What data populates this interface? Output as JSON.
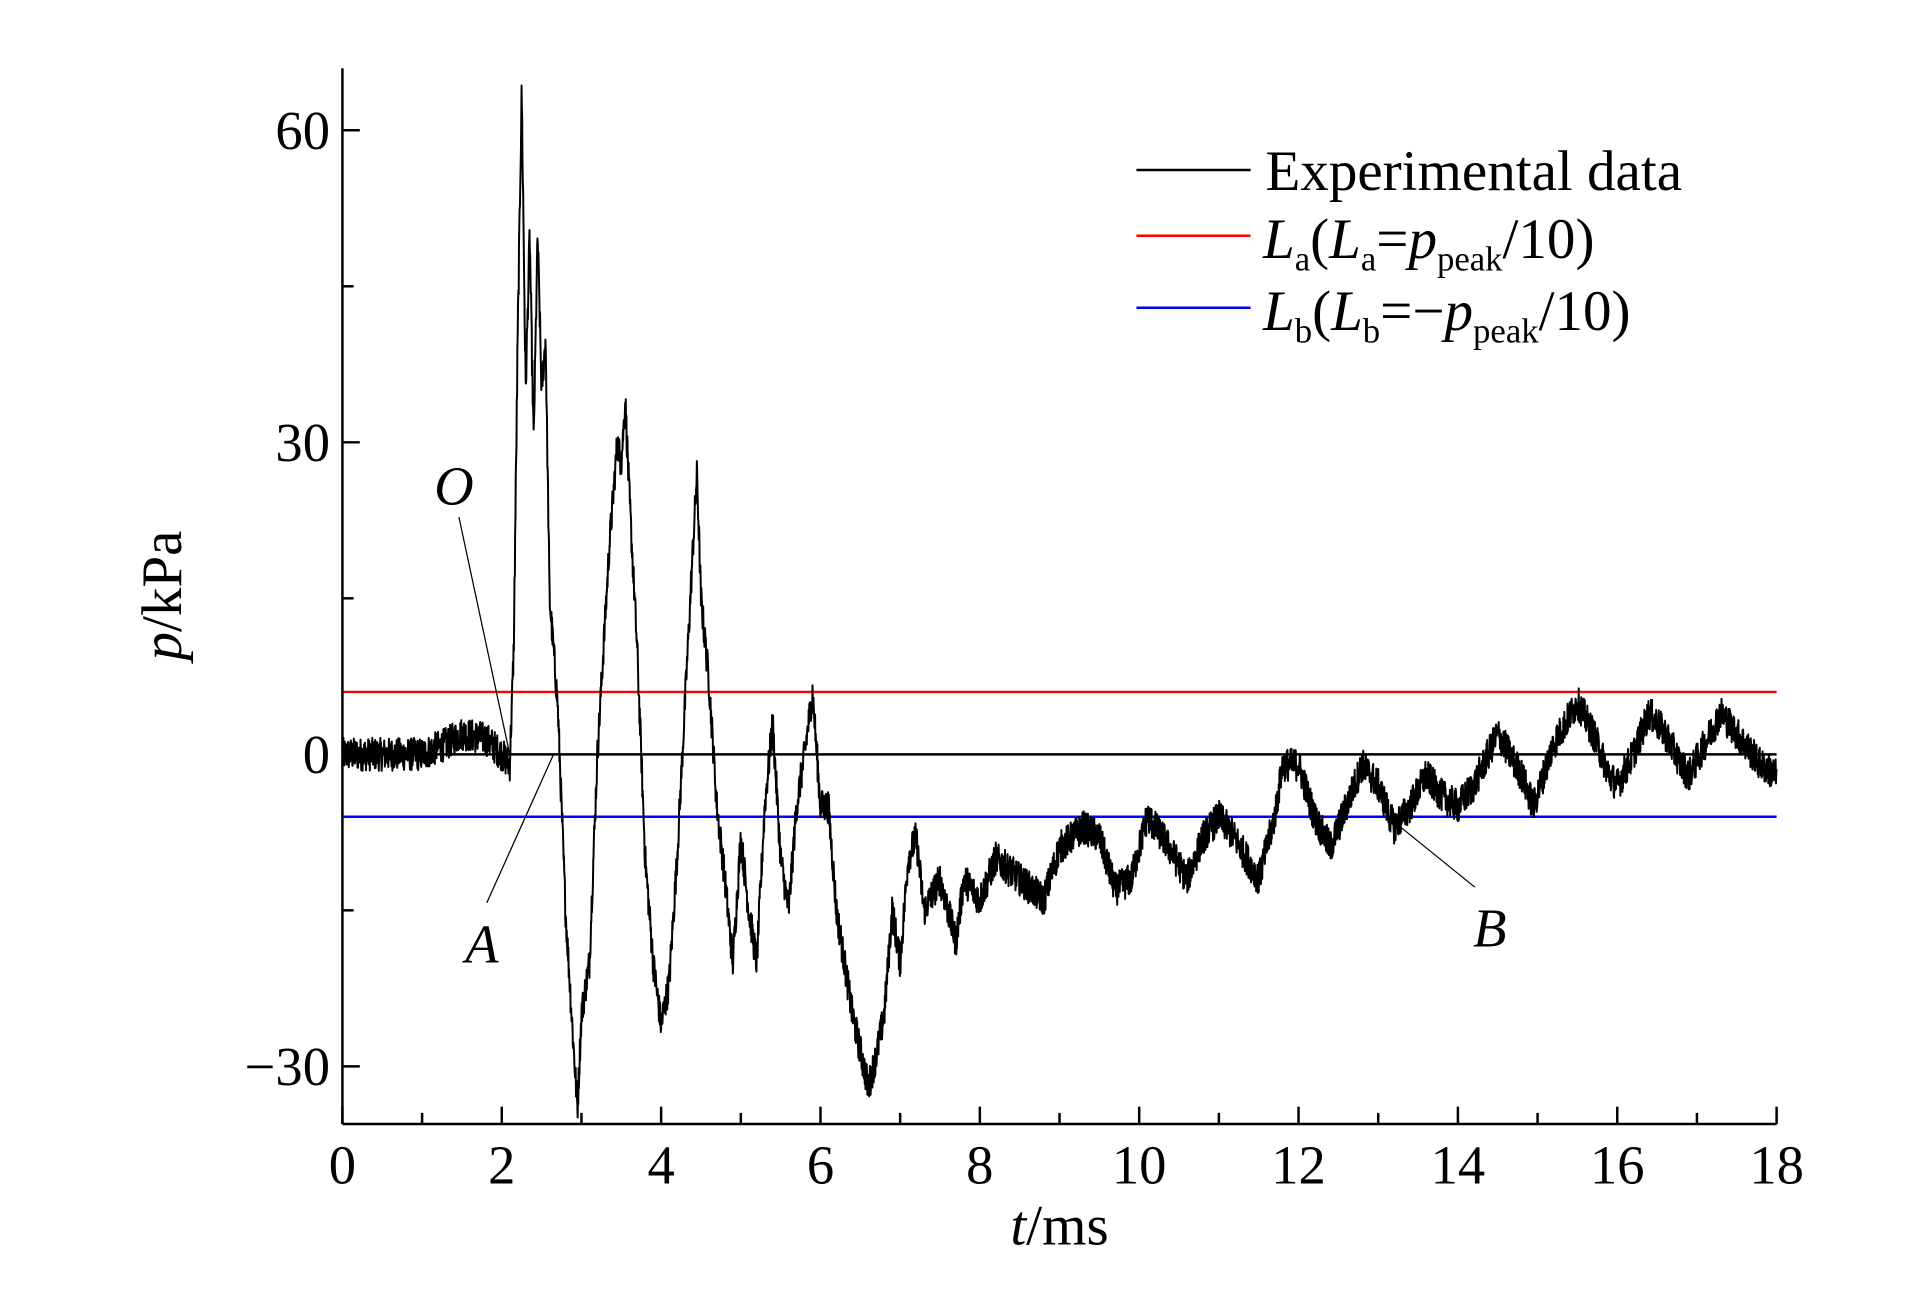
{
  "chart_data": {
    "type": "line",
    "title": "",
    "xlabel_var": "t",
    "xlabel_unit": "/ms",
    "ylabel_var": "p",
    "ylabel_unit": "/kPa",
    "xlim": [
      0,
      18
    ],
    "ylim": [
      -35.5,
      66
    ],
    "x_ticks": [
      0,
      2,
      4,
      6,
      8,
      10,
      12,
      14,
      16,
      18
    ],
    "x_tick_labels": [
      "0",
      "2",
      "4",
      "6",
      "8",
      "10",
      "12",
      "14",
      "16",
      "18"
    ],
    "x_minor_step": 1,
    "y_ticks": [
      -30,
      0,
      30,
      60
    ],
    "y_tick_labels": [
      "−30",
      "0",
      "30",
      "60"
    ],
    "y_minor_step": 15,
    "grid": false,
    "legend_position": "top-right",
    "legend": [
      {
        "label": "Experimental data",
        "color": "#000000"
      },
      {
        "label_main": "L",
        "label_sub": "a",
        "label_rest_open": "(",
        "label_main2": "L",
        "label_sub2": "a",
        "label_eq": "=",
        "label_p": "p",
        "label_psub": "peak",
        "label_tail": "/10)",
        "color": "#ff0000"
      },
      {
        "label_main": "L",
        "label_sub": "b",
        "label_rest_open": "(",
        "label_main2": "L",
        "label_sub2": "b",
        "label_eq": "=−",
        "label_p": "p",
        "label_psub": "peak",
        "label_tail": "/10)",
        "color": "#0000ff"
      }
    ],
    "reference_lines": [
      {
        "name": "zero",
        "y": 0,
        "color": "#000000"
      },
      {
        "name": "La",
        "y": 6.0,
        "color": "#ff0000"
      },
      {
        "name": "Lb",
        "y": -6.0,
        "color": "#0000ff"
      }
    ],
    "annotations": [
      {
        "label": "O",
        "point": [
          2.1,
          0
        ],
        "text_at": [
          1.4,
          24
        ]
      },
      {
        "label": "A",
        "point": [
          2.65,
          0
        ],
        "text_at": [
          1.75,
          -20
        ]
      },
      {
        "label": "B",
        "point": [
          13.2,
          -6.5
        ],
        "text_at": [
          14.4,
          -18.5
        ]
      }
    ],
    "series": [
      {
        "name": "Experimental data",
        "color": "#000000",
        "noise_amplitude_kPa": 1.6,
        "points": [
          [
            0,
            0
          ],
          [
            0.5,
            0
          ],
          [
            1.0,
            0
          ],
          [
            1.3,
            1
          ],
          [
            1.5,
            2
          ],
          [
            1.8,
            1.5
          ],
          [
            2.0,
            0
          ],
          [
            2.1,
            -1
          ],
          [
            2.15,
            10
          ],
          [
            2.2,
            40
          ],
          [
            2.25,
            64
          ],
          [
            2.3,
            35
          ],
          [
            2.35,
            50
          ],
          [
            2.4,
            30
          ],
          [
            2.45,
            50
          ],
          [
            2.5,
            35
          ],
          [
            2.55,
            40
          ],
          [
            2.6,
            15
          ],
          [
            2.7,
            5
          ],
          [
            2.8,
            -15
          ],
          [
            2.9,
            -28
          ],
          [
            2.95,
            -34
          ],
          [
            3.0,
            -25
          ],
          [
            3.1,
            -20
          ],
          [
            3.2,
            0
          ],
          [
            3.35,
            20
          ],
          [
            3.45,
            30
          ],
          [
            3.5,
            28
          ],
          [
            3.55,
            34
          ],
          [
            3.6,
            25
          ],
          [
            3.7,
            10
          ],
          [
            3.8,
            -10
          ],
          [
            3.9,
            -20
          ],
          [
            4.0,
            -26
          ],
          [
            4.1,
            -22
          ],
          [
            4.2,
            -10
          ],
          [
            4.3,
            5
          ],
          [
            4.4,
            20
          ],
          [
            4.45,
            27
          ],
          [
            4.5,
            15
          ],
          [
            4.6,
            7
          ],
          [
            4.7,
            -5
          ],
          [
            4.8,
            -12
          ],
          [
            4.9,
            -20
          ],
          [
            5.0,
            -8
          ],
          [
            5.1,
            -15
          ],
          [
            5.2,
            -20
          ],
          [
            5.3,
            -5
          ],
          [
            5.4,
            3
          ],
          [
            5.5,
            -10
          ],
          [
            5.6,
            -15
          ],
          [
            5.7,
            -5
          ],
          [
            5.8,
            0
          ],
          [
            5.9,
            6
          ],
          [
            6.0,
            -5
          ],
          [
            6.1,
            -5
          ],
          [
            6.2,
            -15
          ],
          [
            6.4,
            -25
          ],
          [
            6.6,
            -32
          ],
          [
            6.7,
            -29
          ],
          [
            6.8,
            -25
          ],
          [
            6.9,
            -15
          ],
          [
            7.0,
            -20
          ],
          [
            7.1,
            -10
          ],
          [
            7.2,
            -8
          ],
          [
            7.3,
            -15
          ],
          [
            7.5,
            -12
          ],
          [
            7.7,
            -18
          ],
          [
            7.8,
            -12
          ],
          [
            8.0,
            -14
          ],
          [
            8.2,
            -10
          ],
          [
            8.5,
            -12
          ],
          [
            8.8,
            -14
          ],
          [
            9.0,
            -9
          ],
          [
            9.3,
            -7
          ],
          [
            9.5,
            -8
          ],
          [
            9.7,
            -13
          ],
          [
            9.9,
            -12
          ],
          [
            10.1,
            -6
          ],
          [
            10.3,
            -8
          ],
          [
            10.6,
            -12
          ],
          [
            10.8,
            -8
          ],
          [
            11.0,
            -6
          ],
          [
            11.2,
            -8
          ],
          [
            11.5,
            -12
          ],
          [
            11.7,
            -6
          ],
          [
            11.8,
            -1
          ],
          [
            12.0,
            -1
          ],
          [
            12.2,
            -6
          ],
          [
            12.4,
            -9
          ],
          [
            12.6,
            -5
          ],
          [
            12.8,
            -1
          ],
          [
            13.0,
            -3
          ],
          [
            13.2,
            -7
          ],
          [
            13.4,
            -5
          ],
          [
            13.6,
            -2
          ],
          [
            13.8,
            -4
          ],
          [
            14.0,
            -5
          ],
          [
            14.2,
            -3
          ],
          [
            14.5,
            2
          ],
          [
            14.8,
            -2
          ],
          [
            14.95,
            -5
          ],
          [
            15.2,
            1
          ],
          [
            15.5,
            5
          ],
          [
            15.7,
            2
          ],
          [
            15.9,
            -2
          ],
          [
            16.0,
            -3
          ],
          [
            16.2,
            0
          ],
          [
            16.4,
            4
          ],
          [
            16.6,
            2
          ],
          [
            16.8,
            -1
          ],
          [
            16.9,
            -2
          ],
          [
            17.1,
            1
          ],
          [
            17.3,
            4
          ],
          [
            17.6,
            1
          ],
          [
            17.8,
            -1
          ],
          [
            18.0,
            -2
          ]
        ]
      }
    ]
  }
}
